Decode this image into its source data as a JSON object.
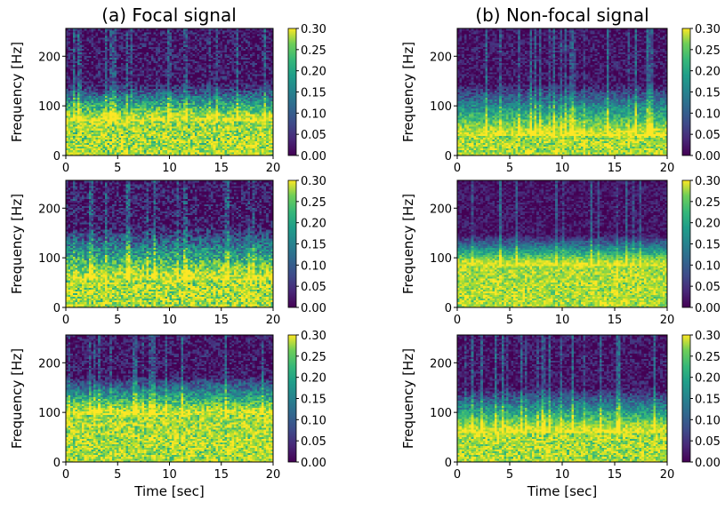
{
  "figure": {
    "column_titles": [
      "(a) Focal signal",
      "(b) Non-focal signal"
    ]
  },
  "chart_data": [
    {
      "type": "heatmap",
      "panel": "focal-1",
      "title": "(a) Focal signal",
      "xlabel": "",
      "ylabel": "Frequency [Hz]",
      "xlim": [
        0,
        20
      ],
      "ylim": [
        0,
        256
      ],
      "x_ticks": [
        "0",
        "5",
        "10",
        "15",
        "20"
      ],
      "y_ticks": [
        "0",
        "100",
        "200"
      ],
      "colorbar": {
        "range": [
          0,
          0.3
        ],
        "ticks": [
          "0.00",
          "0.05",
          "0.10",
          "0.15",
          "0.20",
          "0.25",
          "0.30"
        ],
        "colormap": "viridis"
      },
      "profile": {
        "yellow_below_hz": 70,
        "transition_top_hz": 150,
        "variation": 0.2,
        "seed": 11
      }
    },
    {
      "type": "heatmap",
      "panel": "nonfocal-1",
      "title": "(b) Non-focal signal",
      "xlabel": "",
      "ylabel": "Frequency [Hz]",
      "xlim": [
        0,
        20
      ],
      "ylim": [
        0,
        256
      ],
      "x_ticks": [
        "0",
        "5",
        "10",
        "15",
        "20"
      ],
      "y_ticks": [
        "0",
        "100",
        "200"
      ],
      "colorbar": {
        "range": [
          0,
          0.3
        ],
        "ticks": [
          "0.00",
          "0.05",
          "0.10",
          "0.15",
          "0.20",
          "0.25",
          "0.30"
        ],
        "colormap": "viridis"
      },
      "profile": {
        "yellow_below_hz": 40,
        "transition_top_hz": 150,
        "variation": 0.15,
        "seed": 23
      }
    },
    {
      "type": "heatmap",
      "panel": "focal-2",
      "title": "",
      "xlabel": "",
      "ylabel": "Frequency [Hz]",
      "xlim": [
        0,
        20
      ],
      "ylim": [
        0,
        256
      ],
      "x_ticks": [
        "0",
        "5",
        "10",
        "15",
        "20"
      ],
      "y_ticks": [
        "0",
        "100",
        "200"
      ],
      "colorbar": {
        "range": [
          0,
          0.3
        ],
        "ticks": [
          "0.00",
          "0.05",
          "0.10",
          "0.15",
          "0.20",
          "0.25",
          "0.30"
        ],
        "colormap": "viridis"
      },
      "profile": {
        "yellow_below_hz": 55,
        "transition_top_hz": 170,
        "variation": 0.22,
        "seed": 37
      }
    },
    {
      "type": "heatmap",
      "panel": "nonfocal-2",
      "title": "",
      "xlabel": "",
      "ylabel": "Frequency [Hz]",
      "xlim": [
        0,
        20
      ],
      "ylim": [
        0,
        256
      ],
      "x_ticks": [
        "0",
        "5",
        "10",
        "15",
        "20"
      ],
      "y_ticks": [
        "0",
        "100",
        "200"
      ],
      "colorbar": {
        "range": [
          0,
          0.3
        ],
        "ticks": [
          "0.00",
          "0.05",
          "0.10",
          "0.15",
          "0.20",
          "0.25",
          "0.30"
        ],
        "colormap": "viridis"
      },
      "profile": {
        "yellow_below_hz": 85,
        "transition_top_hz": 150,
        "variation": 0.12,
        "seed": 41
      }
    },
    {
      "type": "heatmap",
      "panel": "focal-3",
      "title": "",
      "xlabel": "Time [sec]",
      "ylabel": "Frequency [Hz]",
      "xlim": [
        0,
        20
      ],
      "ylim": [
        0,
        256
      ],
      "x_ticks": [
        "0",
        "5",
        "10",
        "15",
        "20"
      ],
      "y_ticks": [
        "0",
        "100",
        "200"
      ],
      "colorbar": {
        "range": [
          0,
          0.3
        ],
        "ticks": [
          "0.00",
          "0.05",
          "0.10",
          "0.15",
          "0.20",
          "0.25",
          "0.30"
        ],
        "colormap": "viridis"
      },
      "profile": {
        "yellow_below_hz": 95,
        "transition_top_hz": 180,
        "variation": 0.18,
        "seed": 53
      }
    },
    {
      "type": "heatmap",
      "panel": "nonfocal-3",
      "title": "",
      "xlabel": "Time [sec]",
      "ylabel": "Frequency [Hz]",
      "xlim": [
        0,
        20
      ],
      "ylim": [
        0,
        256
      ],
      "x_ticks": [
        "0",
        "5",
        "10",
        "15",
        "20"
      ],
      "y_ticks": [
        "0",
        "100",
        "200"
      ],
      "colorbar": {
        "range": [
          0,
          0.3
        ],
        "ticks": [
          "0.00",
          "0.05",
          "0.10",
          "0.15",
          "0.20",
          "0.25",
          "0.30"
        ],
        "colormap": "viridis"
      },
      "profile": {
        "yellow_below_hz": 60,
        "transition_top_hz": 155,
        "variation": 0.15,
        "seed": 67
      }
    }
  ]
}
